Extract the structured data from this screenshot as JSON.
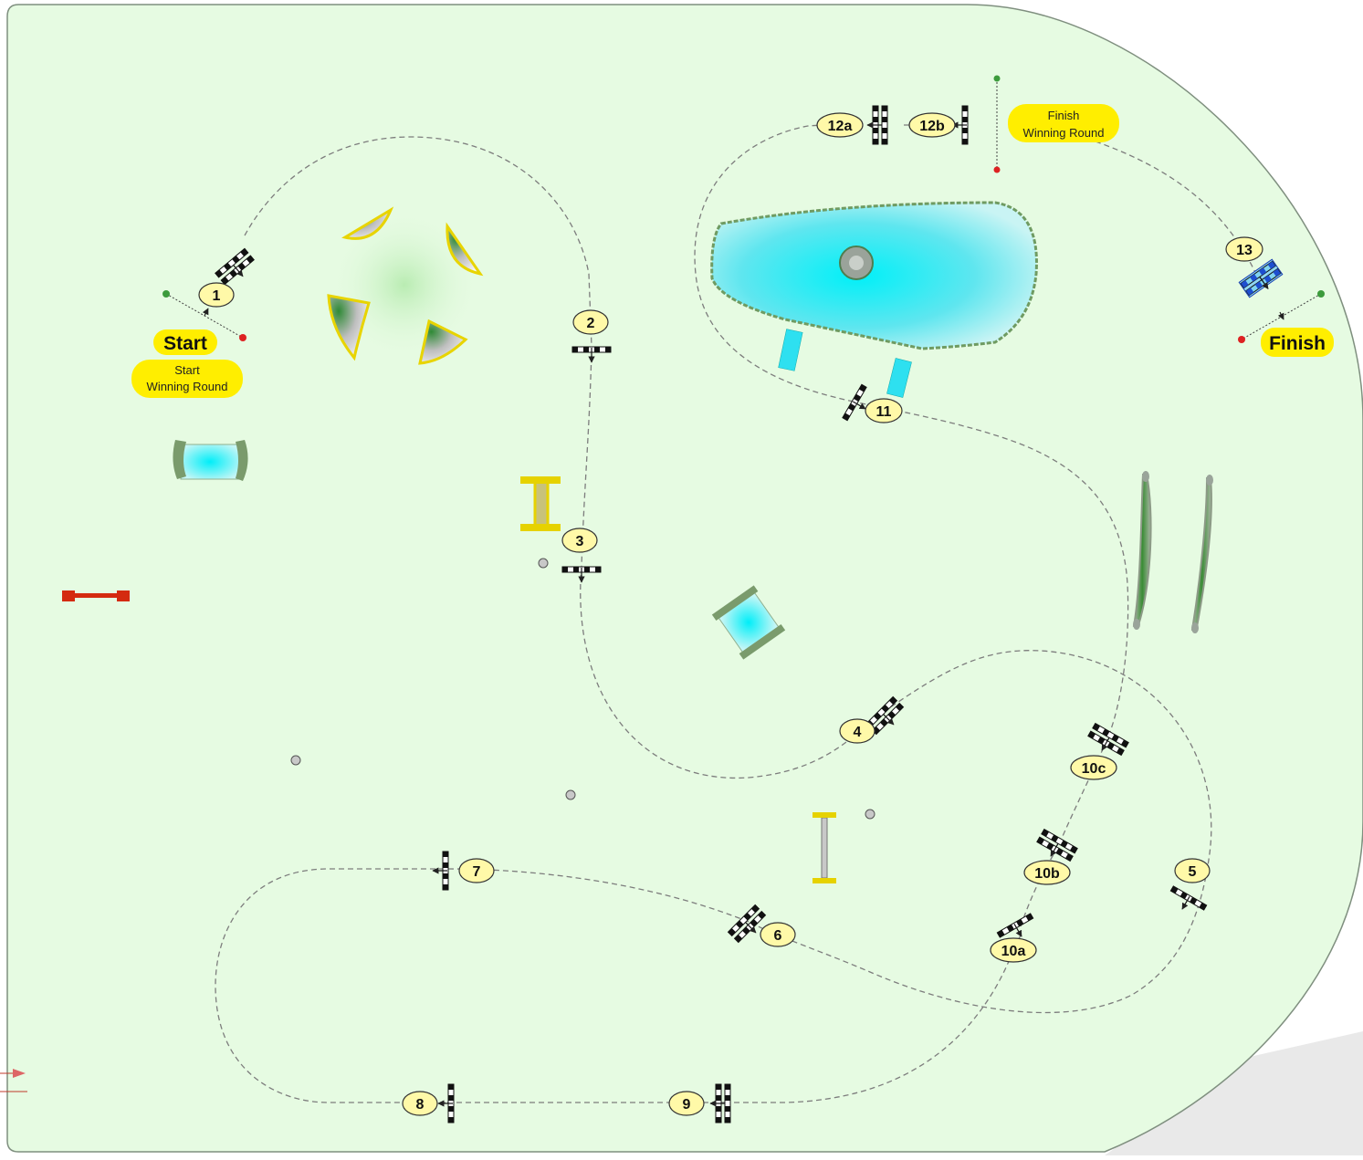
{
  "course": {
    "start_label": "Start",
    "start_winning_line1": "Start",
    "start_winning_line2": "Winning Round",
    "finish_label": "Finish",
    "finish_winning_line1": "Finish",
    "finish_winning_line2": "Winning Round"
  },
  "obstacles": [
    {
      "label": "1",
      "type": "oxer"
    },
    {
      "label": "2",
      "type": "vertical"
    },
    {
      "label": "3",
      "type": "vertical"
    },
    {
      "label": "4",
      "type": "oxer"
    },
    {
      "label": "5",
      "type": "vertical"
    },
    {
      "label": "6",
      "type": "oxer"
    },
    {
      "label": "7",
      "type": "vertical"
    },
    {
      "label": "8",
      "type": "vertical"
    },
    {
      "label": "9",
      "type": "oxer"
    },
    {
      "label": "10a",
      "type": "vertical"
    },
    {
      "label": "10b",
      "type": "oxer"
    },
    {
      "label": "10c",
      "type": "oxer"
    },
    {
      "label": "11",
      "type": "vertical"
    },
    {
      "label": "12a",
      "type": "oxer"
    },
    {
      "label": "12b",
      "type": "vertical"
    },
    {
      "label": "13",
      "type": "water-oxer"
    }
  ],
  "colors": {
    "arena_fill": "#e6fbe2",
    "arena_border": "#7f8f7f",
    "label_fill": "#fff9a8",
    "tag_fill": "#ffee00",
    "water": "#38e0ee",
    "course_line": "#7d7d7d",
    "outside": "#e9e9e9"
  }
}
